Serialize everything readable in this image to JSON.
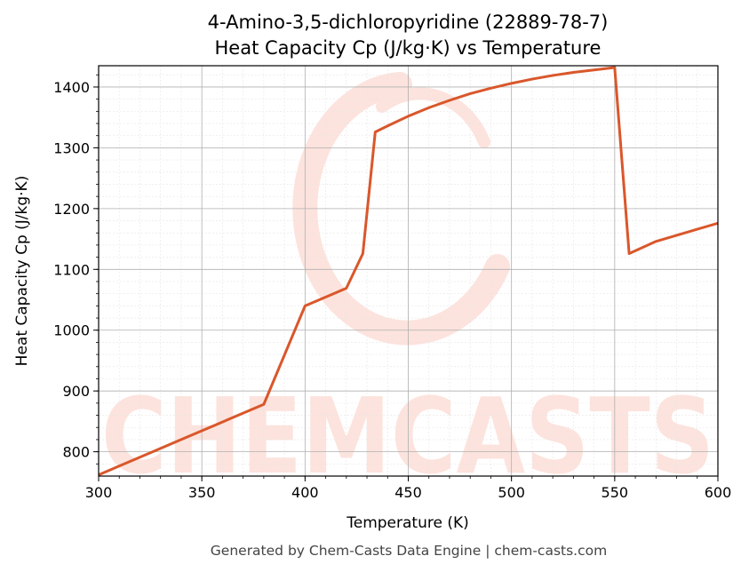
{
  "chart_data": {
    "type": "line",
    "title": "4-Amino-3,5-dichloropyridine (22889-78-7)",
    "subtitle": "Heat Capacity Cp (J/kg·K) vs Temperature",
    "xlabel": "Temperature (K)",
    "ylabel": "Heat Capacity Cp (J/kg·K)",
    "xlim": [
      300,
      600
    ],
    "ylim": [
      760,
      1435
    ],
    "xticks": [
      300,
      350,
      400,
      450,
      500,
      550,
      600
    ],
    "yticks": [
      800,
      900,
      1000,
      1100,
      1200,
      1300,
      1400
    ],
    "grid": true,
    "series": [
      {
        "color": "#d9572b",
        "x": [
          300,
          320,
          340,
          360,
          380,
          400,
          420,
          428,
          434,
          440,
          450,
          460,
          470,
          480,
          490,
          500,
          510,
          520,
          530,
          540,
          550,
          557,
          570,
          580,
          590,
          600
        ],
        "y": [
          762,
          791,
          820,
          849,
          878,
          1040,
          1069,
          1126,
          1326,
          1336,
          1352,
          1366,
          1378,
          1389,
          1398,
          1406,
          1413,
          1419,
          1424,
          1428,
          1432,
          1126,
          1146,
          1156,
          1166,
          1176
        ]
      }
    ]
  },
  "watermark": {
    "text": "CHEMCASTS",
    "color": "#fde3dd"
  },
  "footer": {
    "text": "Generated by Chem-Casts Data Engine | chem-casts.com"
  }
}
